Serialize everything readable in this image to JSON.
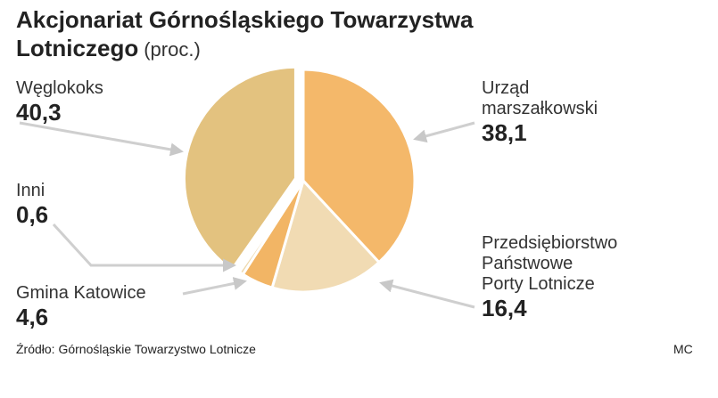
{
  "chart_data": {
    "type": "pie",
    "title": "Akcjonariat Górnośląskiego Towarzystwa Lotniczego",
    "subtitle": "(proc.)",
    "categories": [
      "Urząd marszałkowski",
      "Przedsiębiorstwo Państwowe Porty Lotnicze",
      "Gmina Katowice",
      "Inni",
      "Węglokoks"
    ],
    "values": [
      38.1,
      16.4,
      4.6,
      0.6,
      40.3
    ],
    "value_labels": [
      "38,1",
      "16,4",
      "4,6",
      "0,6",
      "40,3"
    ],
    "colors": [
      "#f4b86a",
      "#f1dbb3",
      "#f2b565",
      "#eed9ae",
      "#e3c27f"
    ],
    "source": "Źródło: Górnośląskie Towarzystwo Lotnicze",
    "credit": "MC"
  }
}
